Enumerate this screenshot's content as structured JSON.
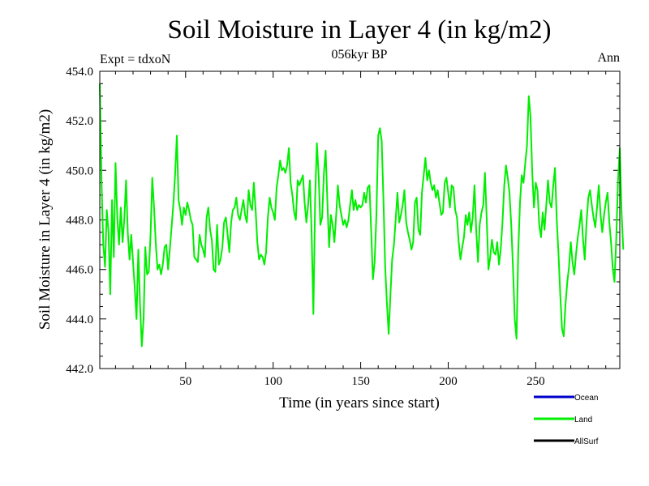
{
  "chart_data": {
    "type": "line",
    "title": "Soil Moisture in Layer 4 (in kg/m2)",
    "subtitle": "056kyr BP",
    "left_note": "Expt = tdxoN",
    "right_note": "Ann",
    "xlabel": "Time (in years since start)",
    "ylabel": "Soil Moisture in Layer 4 (in kg/m2)",
    "xlim": [
      1,
      298
    ],
    "ylim": [
      442.0,
      454.0
    ],
    "x_ticks": [
      50,
      100,
      150,
      200,
      250
    ],
    "x_tick_labels": [
      "50",
      "100",
      "150",
      "200",
      "250"
    ],
    "y_ticks": [
      442.0,
      444.0,
      446.0,
      448.0,
      450.0,
      452.0,
      454.0
    ],
    "y_tick_labels": [
      "442.0",
      "444.0",
      "446.0",
      "448.0",
      "450.0",
      "452.0",
      "454.0"
    ],
    "legend": [
      {
        "name": "Ocean",
        "color": "#0000cc"
      },
      {
        "name": "Land",
        "color": "#00ee00"
      },
      {
        "name": "AllSurf",
        "color": "#000000"
      }
    ],
    "series": [
      {
        "name": "Land",
        "color": "#00ee00",
        "x_start": 1,
        "x_step": 1,
        "values": [
          453.5,
          449.5,
          447.0,
          446.1,
          448.4,
          447.5,
          445.0,
          448.8,
          446.5,
          450.3,
          448.1,
          447.0,
          448.5,
          447.1,
          448.0,
          449.6,
          447.5,
          446.4,
          447.4,
          446.3,
          445.2,
          444.0,
          446.8,
          444.6,
          442.9,
          444.0,
          446.9,
          445.8,
          445.9,
          447.4,
          449.7,
          448.5,
          447.0,
          446.0,
          446.2,
          445.8,
          446.2,
          446.9,
          447.0,
          446.0,
          446.8,
          447.7,
          448.6,
          449.8,
          451.4,
          448.8,
          448.4,
          447.8,
          448.5,
          448.2,
          448.7,
          448.4,
          448.0,
          447.8,
          446.5,
          446.4,
          446.3,
          447.4,
          447.0,
          446.8,
          446.5,
          448.1,
          448.5,
          447.6,
          447.2,
          446.0,
          445.9,
          447.8,
          446.2,
          446.4,
          446.9,
          447.9,
          448.1,
          447.4,
          446.7,
          447.9,
          448.4,
          448.5,
          448.9,
          448.2,
          448.0,
          448.4,
          448.8,
          448.2,
          447.9,
          449.2,
          448.6,
          448.4,
          449.5,
          448.4,
          447.1,
          446.4,
          446.6,
          446.5,
          446.2,
          446.7,
          448.1,
          448.9,
          448.5,
          448.3,
          448.0,
          449.3,
          449.8,
          450.4,
          450.0,
          450.1,
          449.9,
          450.2,
          450.9,
          449.5,
          449.0,
          448.3,
          448.0,
          449.6,
          449.4,
          449.6,
          449.8,
          448.7,
          447.9,
          448.6,
          449.6,
          447.5,
          444.2,
          448.9,
          451.1,
          449.8,
          447.8,
          448.1,
          449.9,
          450.8,
          448.7,
          446.9,
          448.2,
          447.8,
          447.1,
          448.2,
          449.4,
          448.6,
          448.2,
          447.8,
          448.0,
          447.7,
          448.0,
          448.6,
          449.2,
          448.4,
          448.8,
          448.4,
          448.6,
          448.5,
          448.6,
          449.1,
          448.7,
          449.3,
          449.4,
          447.6,
          445.6,
          446.3,
          448.2,
          451.4,
          451.7,
          451.2,
          448.9,
          446.1,
          444.6,
          443.4,
          445.0,
          446.4,
          447.0,
          448.0,
          449.1,
          447.9,
          448.2,
          448.6,
          449.2,
          447.9,
          447.5,
          447.2,
          446.8,
          447.1,
          448.7,
          448.9,
          447.6,
          447.4,
          449.1,
          449.8,
          450.5,
          449.6,
          450.0,
          449.5,
          449.2,
          449.4,
          448.9,
          449.2,
          448.7,
          448.2,
          448.3,
          449.5,
          449.7,
          449.1,
          448.5,
          449.4,
          449.3,
          448.4,
          448.1,
          447.1,
          446.4,
          446.9,
          447.3,
          448.2,
          447.8,
          448.3,
          447.5,
          448.1,
          449.4,
          447.6,
          446.3,
          447.8,
          448.3,
          448.6,
          449.9,
          448.0,
          446.0,
          446.5,
          447.2,
          446.7,
          446.6,
          447.1,
          446.2,
          446.8,
          447.9,
          449.4,
          450.2,
          449.7,
          449.1,
          447.8,
          446.1,
          444.0,
          443.2,
          446.7,
          448.7,
          449.8,
          449.5,
          450.3,
          451.0,
          453.0,
          452.2,
          449.9,
          448.5,
          449.5,
          449.2,
          447.8,
          447.3,
          448.3,
          447.6,
          448.6,
          449.6,
          448.7,
          448.5,
          449.4,
          450.1,
          448.0,
          446.6,
          445.0,
          443.6,
          443.3,
          444.6,
          445.5,
          446.1,
          447.1,
          446.3,
          445.8,
          446.6,
          447.3,
          447.8,
          448.4,
          447.2,
          446.4,
          447.9,
          448.9,
          449.2,
          448.6,
          448.1,
          447.7,
          448.5,
          449.4,
          448.2,
          447.5,
          448.2,
          448.7,
          449.1,
          447.9,
          447.1,
          446.0,
          445.5,
          447.3,
          449.6,
          450.9,
          448.3,
          446.8
        ]
      }
    ]
  }
}
